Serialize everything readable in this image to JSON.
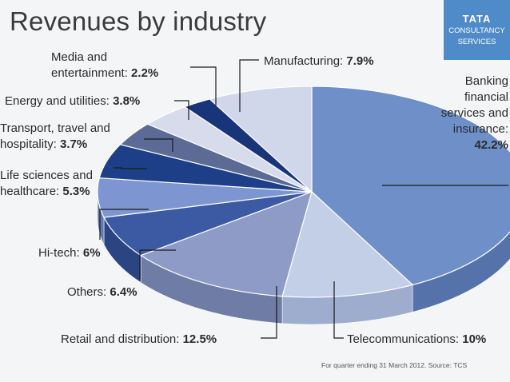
{
  "title": "Revenues by industry",
  "logo": {
    "brand": "TATA",
    "line1": "CONSULTANCY",
    "line2": "SERVICES"
  },
  "footnote": "For quarter ending 31 March 2012. Source: TCS",
  "colors": {
    "leader": "#1a1a1a",
    "text": "#2b2b2b"
  },
  "chart_data": {
    "type": "pie",
    "title": "Revenues by industry",
    "slices": [
      {
        "label": "Banking financial services and insurance",
        "value": 42.2,
        "value_text": "42.2%",
        "color": "#6f8fc9",
        "side": "#5572ab"
      },
      {
        "label": "Telecommunications",
        "value": 10,
        "value_text": "10%",
        "color": "#c3cee7",
        "side": "#9eadcd"
      },
      {
        "label": "Retail and distribution",
        "value": 12.5,
        "value_text": "12.5%",
        "color": "#8d9bc6",
        "side": "#6e7ca6"
      },
      {
        "label": "Others",
        "value": 6.4,
        "value_text": "6.4%",
        "color": "#3b5aa3",
        "side": "#2b4583"
      },
      {
        "label": "Hi-tech",
        "value": 6,
        "value_text": "6%",
        "color": "#7d96d2",
        "side": "#6079b3"
      },
      {
        "label": "Life sciences and healthcare",
        "value": 5.3,
        "value_text": "5.3%",
        "color": "#1d3f88",
        "side": "#142f6a"
      },
      {
        "label": "Transport, travel and hospitality",
        "value": 3.7,
        "value_text": "3.7%",
        "color": "#5b6b96",
        "side": "#455379"
      },
      {
        "label": "Energy and utilities",
        "value": 3.8,
        "value_text": "3.8%",
        "color": "#d7dced",
        "side": "#b4bad0"
      },
      {
        "label": "Media and entertainment",
        "value": 2.2,
        "value_text": "2.2%",
        "color": "#18357a",
        "side": "#10275c"
      },
      {
        "label": "Manufacturing",
        "value": 7.9,
        "value_text": "7.9%",
        "color": "#d0d7ea",
        "side": "#aab3cb"
      }
    ]
  },
  "labels": [
    {
      "lines": [
        "Banking",
        "financial",
        "services and",
        "insurance:"
      ],
      "value": "42.2%"
    },
    {
      "lines": [
        "Telecommunications:"
      ],
      "value": "10%"
    },
    {
      "lines": [
        "Retail and distribution:"
      ],
      "value": "12.5%"
    },
    {
      "lines": [
        "Others:"
      ],
      "value": "6.4%"
    },
    {
      "lines": [
        "Hi-tech:"
      ],
      "value": "6%"
    },
    {
      "lines": [
        "Life sciences and",
        "healthcare:"
      ],
      "value": "5.3%"
    },
    {
      "lines": [
        "Transport, travel and",
        "hospitality:"
      ],
      "value": "3.7%"
    },
    {
      "lines": [
        "Energy and utilities:"
      ],
      "value": "3.8%"
    },
    {
      "lines": [
        "Media and",
        "entertainment:"
      ],
      "value": "2.2%"
    },
    {
      "lines": [
        "Manufacturing:"
      ],
      "value": "7.9%"
    }
  ]
}
